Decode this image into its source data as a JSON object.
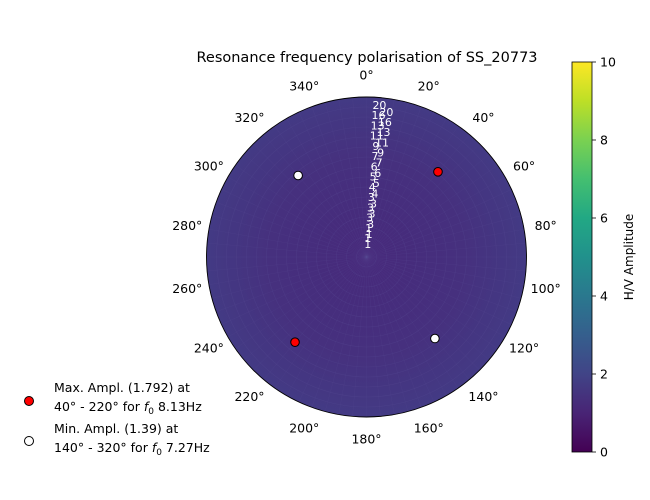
{
  "chart_data": {
    "type": "heatmap",
    "projection": "polar",
    "title": "Resonance frequency polarisation of SS_20773",
    "theta_zero": "N",
    "theta_direction": "clockwise",
    "theta_ticks": [
      "0°",
      "20°",
      "40°",
      "60°",
      "80°",
      "100°",
      "120°",
      "140°",
      "160°",
      "180°",
      "200°",
      "220°",
      "240°",
      "260°",
      "280°",
      "300°",
      "320°",
      "340°"
    ],
    "theta_tick_values": [
      0,
      20,
      40,
      60,
      80,
      100,
      120,
      140,
      160,
      180,
      200,
      220,
      240,
      260,
      280,
      300,
      320,
      340
    ],
    "radial_axis": {
      "quantity": "frequency (Hz)",
      "range": [
        0,
        20
      ],
      "label_angle_deg": 5,
      "tick_labels": [
        "1",
        "1",
        "3",
        "3",
        "3",
        "4",
        "5",
        "6",
        "7",
        "9",
        "11",
        "13",
        "16",
        "20"
      ],
      "color": "#ffffff"
    },
    "colorbar": {
      "label": "H/V Amplitude",
      "range": [
        0,
        10
      ],
      "ticks": [
        "0",
        "2",
        "4",
        "6",
        "8",
        "10"
      ],
      "colormap": "viridis"
    },
    "field": {
      "description_value_range": [
        1.39,
        1.792
      ],
      "mean_color": "#45347f"
    },
    "max_points": {
      "label_line1": "Max. Ampl. (1.792) at",
      "label_line2_pre": "40° - 220° for ",
      "label_math": "f",
      "label_sub": "0",
      "label_line2_post": " 8.13Hz",
      "theta": [
        40,
        220
      ],
      "r": 13.9,
      "color": "#ff0000"
    },
    "min_points": {
      "label_line1": "Min. Ampl. (1.39) at",
      "label_line2_pre": "140° - 320° for ",
      "label_math": "f",
      "label_sub": "0",
      "label_line2_post": " 7.27Hz",
      "theta": [
        140,
        320
      ],
      "r": 13.3,
      "color": "#ffffff"
    },
    "legend_position": "lower-left"
  }
}
